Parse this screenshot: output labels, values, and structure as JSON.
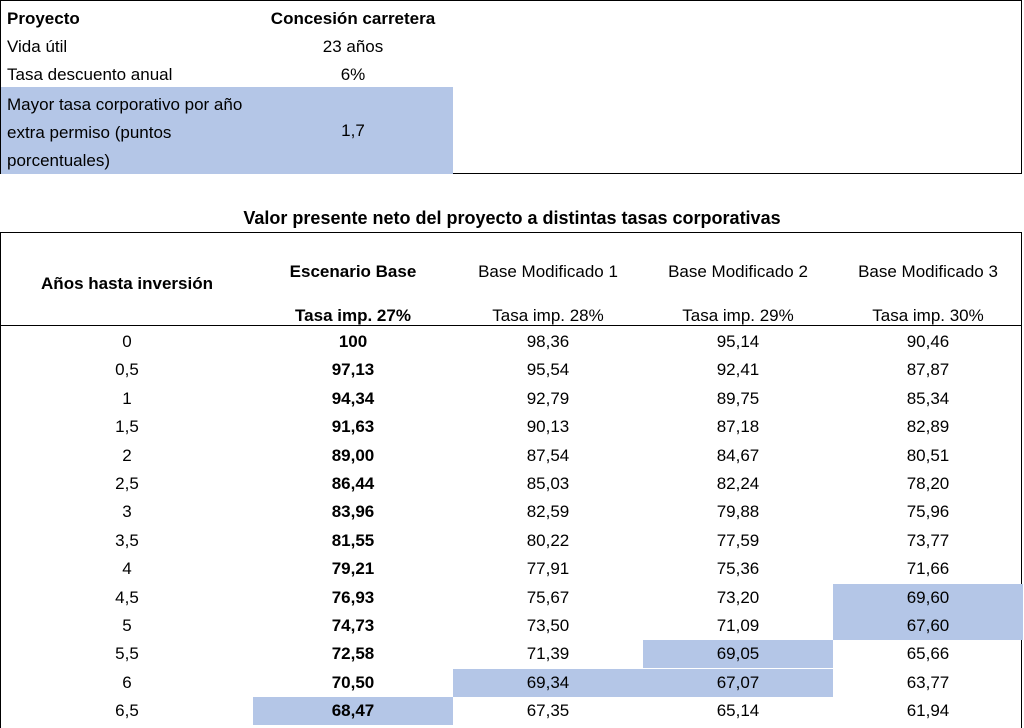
{
  "summary": {
    "project_label": "Proyecto",
    "project_value": "Concesión carretera",
    "life_label": "Vida útil",
    "life_value": "23 años",
    "discount_label": "Tasa descuento anual",
    "discount_value": "6%",
    "extra_label": "Mayor tasa corporativo por año extra permiso (puntos porcentuales)",
    "extra_value": "1,7"
  },
  "table": {
    "title": "Valor presente neto del proyecto a distintas tasas corporativas",
    "year_header": "Años hasta inversión",
    "columns": [
      {
        "name": "Escenario Base",
        "rate": "Tasa imp. 27%"
      },
      {
        "name": "Base Modificado 1",
        "rate": "Tasa imp. 28%"
      },
      {
        "name": "Base Modificado 2",
        "rate": "Tasa imp. 29%"
      },
      {
        "name": "Base Modificado 3",
        "rate": "Tasa imp. 30%"
      }
    ],
    "rows": [
      {
        "year": "0",
        "values": [
          "100",
          "98,36",
          "95,14",
          "90,46"
        ]
      },
      {
        "year": "0,5",
        "values": [
          "97,13",
          "95,54",
          "92,41",
          "87,87"
        ]
      },
      {
        "year": "1",
        "values": [
          "94,34",
          "92,79",
          "89,75",
          "85,34"
        ]
      },
      {
        "year": "1,5",
        "values": [
          "91,63",
          "90,13",
          "87,18",
          "82,89"
        ]
      },
      {
        "year": "2",
        "values": [
          "89,00",
          "87,54",
          "84,67",
          "80,51"
        ]
      },
      {
        "year": "2,5",
        "values": [
          "86,44",
          "85,03",
          "82,24",
          "78,20"
        ]
      },
      {
        "year": "3",
        "values": [
          "83,96",
          "82,59",
          "79,88",
          "75,96"
        ]
      },
      {
        "year": "3,5",
        "values": [
          "81,55",
          "80,22",
          "77,59",
          "73,77"
        ]
      },
      {
        "year": "4",
        "values": [
          "79,21",
          "77,91",
          "75,36",
          "71,66"
        ]
      },
      {
        "year": "4,5",
        "values": [
          "76,93",
          "75,67",
          "73,20",
          "69,60"
        ]
      },
      {
        "year": "5",
        "values": [
          "74,73",
          "73,50",
          "71,09",
          "67,60"
        ]
      },
      {
        "year": "5,5",
        "values": [
          "72,58",
          "71,39",
          "69,05",
          "65,66"
        ]
      },
      {
        "year": "6",
        "values": [
          "70,50",
          "69,34",
          "67,07",
          "63,77"
        ]
      },
      {
        "year": "6,5",
        "values": [
          "68,47",
          "67,35",
          "65,14",
          "61,94"
        ]
      }
    ],
    "highlight_color": "#b4c6e7",
    "highlighted_cells": [
      [
        9,
        3
      ],
      [
        10,
        3
      ],
      [
        11,
        2
      ],
      [
        12,
        2
      ],
      [
        12,
        1
      ],
      [
        13,
        0
      ]
    ]
  }
}
